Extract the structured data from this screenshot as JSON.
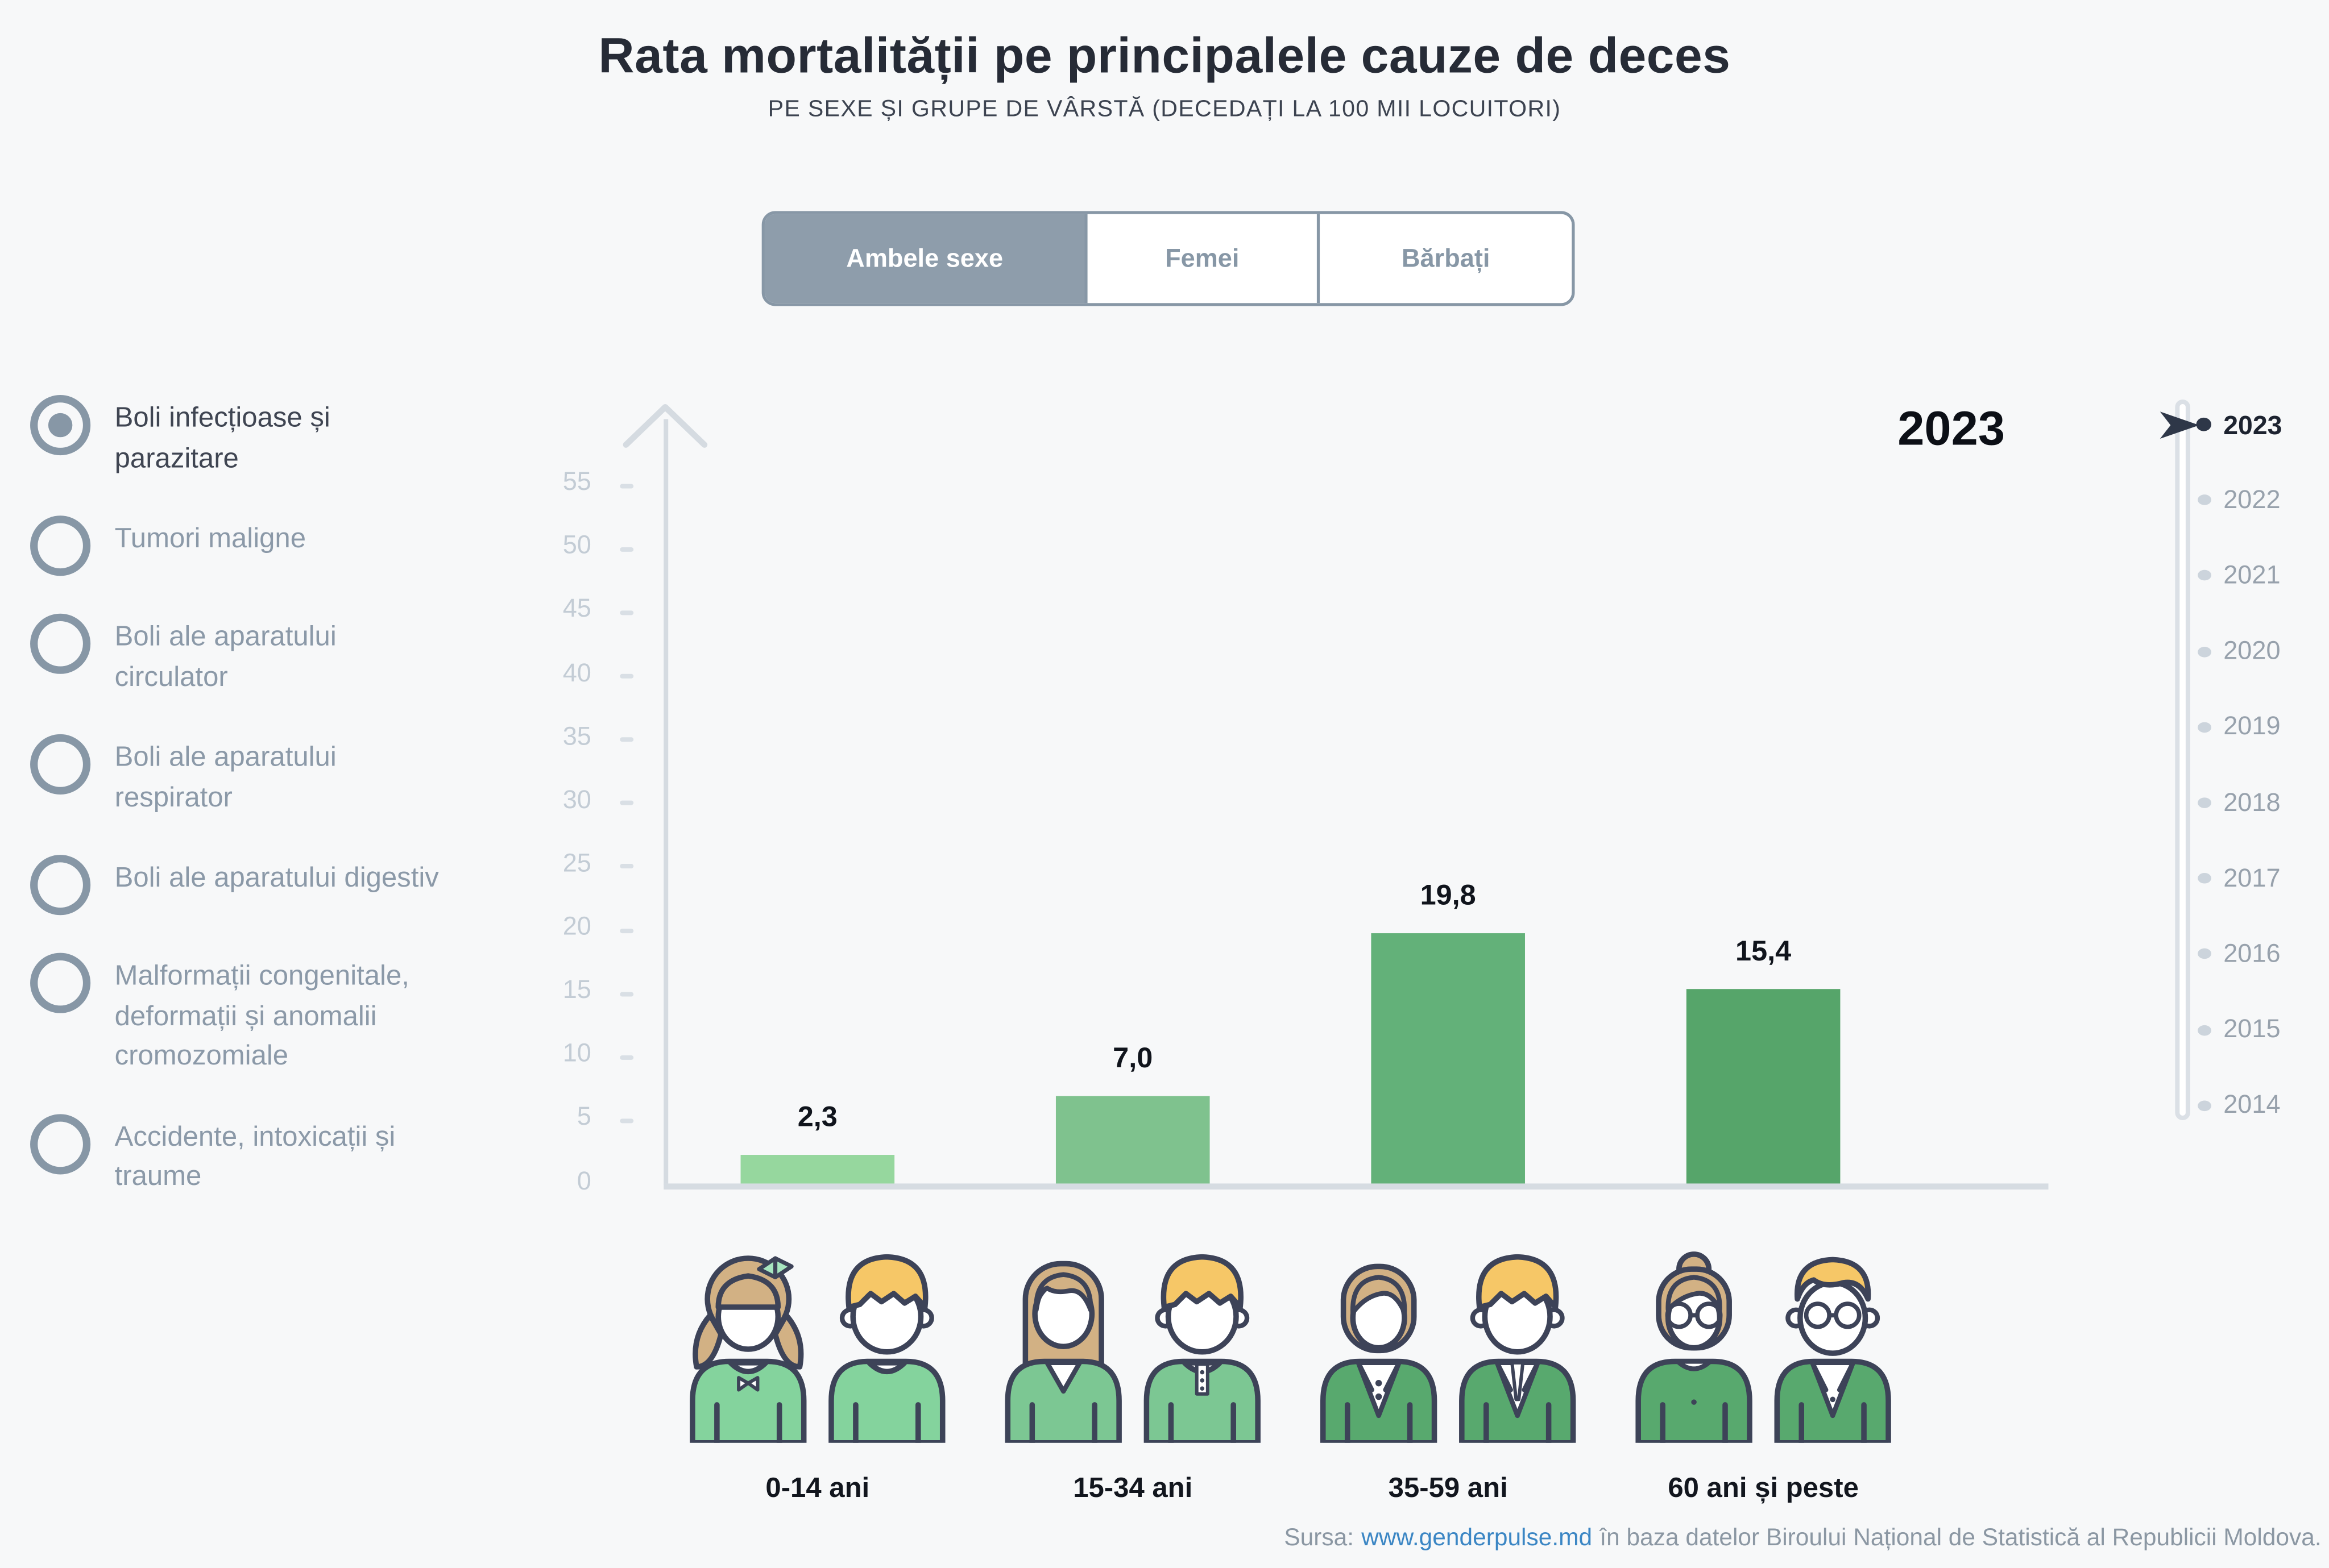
{
  "header": {
    "title": "Rata mortalității pe principalele cauze de deces",
    "subtitle": "PE SEXE ȘI GRUPE DE VÂRSTĂ (DECEDAȚI LA 100 MII LOCUITORI)"
  },
  "tabs": {
    "items": [
      {
        "label": "Ambele sexe",
        "selected": true
      },
      {
        "label": "Femei",
        "selected": false
      },
      {
        "label": "Bărbați",
        "selected": false
      }
    ]
  },
  "causes": {
    "items": [
      {
        "label": "Boli infecțioase și parazitare",
        "selected": true
      },
      {
        "label": "Tumori maligne",
        "selected": false
      },
      {
        "label": "Boli ale aparatului circulator",
        "selected": false
      },
      {
        "label": "Boli ale aparatului respirator",
        "selected": false
      },
      {
        "label": "Boli ale aparatului digestiv",
        "selected": false
      },
      {
        "label": "Malformații congenitale, deformații și anomalii cromozomiale",
        "selected": false
      },
      {
        "label": "Accidente, intoxicații și traume",
        "selected": false
      }
    ]
  },
  "chart_data": {
    "type": "bar",
    "title": "Rata mortalității pe principalele cauze de deces",
    "subtitle": "PE SEXE ȘI GRUPE DE VÂRSTĂ (DECEDAȚI LA 100 MII LOCUITORI)",
    "selected_cause": "Boli infecțioase și parazitare",
    "selected_sex": "Ambele sexe",
    "selected_year": "2023",
    "categories": [
      "0-14 ani",
      "15-34 ani",
      "35-59 ani",
      "60 ani și peste"
    ],
    "values": [
      2.3,
      7.0,
      19.8,
      15.4
    ],
    "value_labels": [
      "2,3",
      "7,0",
      "19,8",
      "15,4"
    ],
    "bar_colors": [
      "#96d79e",
      "#7fc28e",
      "#63b179",
      "#56a56a"
    ],
    "xlabel": "",
    "ylabel": "",
    "ylim": [
      0,
      55
    ],
    "ytick_step": 5,
    "grid": false,
    "legend_position": "none"
  },
  "timeline": {
    "selected": "2023",
    "years": [
      "2023",
      "2022",
      "2021",
      "2020",
      "2019",
      "2018",
      "2017",
      "2016",
      "2015",
      "2014"
    ]
  },
  "age_groups": {
    "icon_pairs": [
      [
        "girl",
        "boy"
      ],
      [
        "young-woman",
        "young-man"
      ],
      [
        "woman-suit",
        "man-suit"
      ],
      [
        "elder-woman",
        "elder-man"
      ]
    ]
  },
  "footer": {
    "prefix": "Sursa:",
    "link": "www.genderpulse.md",
    "suffix": "în baza datelor Biroului Național de Statistică al Republicii Moldova."
  },
  "colors": {
    "background": "#f7f8f9",
    "accent_slate": "#8797a6",
    "selected_tab_bg": "#8e9dab",
    "axis_gray": "#d5dbe1",
    "ylabel_gray": "#c3ccd5",
    "year_inactive": "#97a1ac",
    "year_selected": "#1d2330",
    "cursor_navy": "#2e3748",
    "link_blue": "#3b86c4",
    "outline_navy": "#3d4358",
    "hair_tan": "#d2b184",
    "hair_blonde": "#f6c767",
    "shirt_kid_green": "#84d39d",
    "shirt_young_green": "#7cc793",
    "suit_green": "#58a96e",
    "bow_mint": "#a8e6c0"
  }
}
